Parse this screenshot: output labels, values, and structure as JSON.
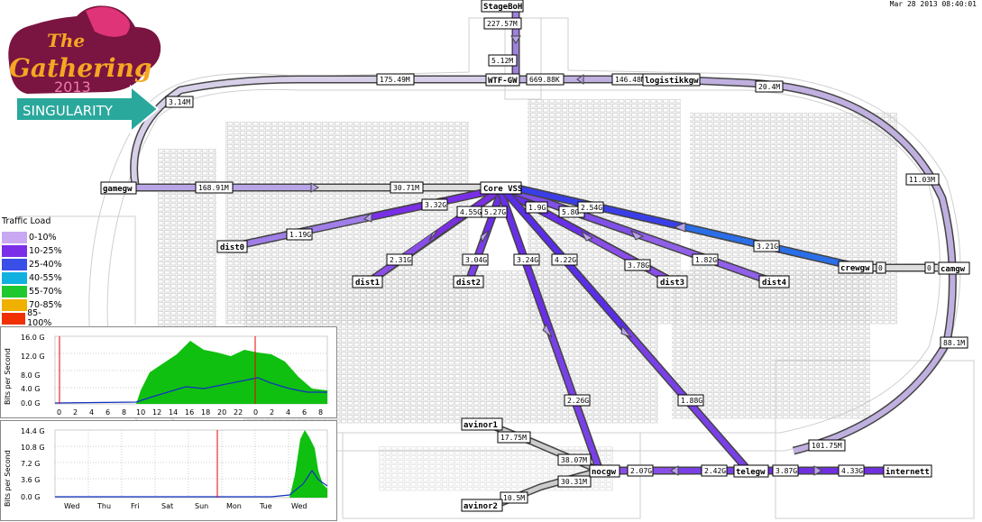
{
  "timestamp": "Mar 28 2013 08:40:01",
  "logo": {
    "line1": "The",
    "line2": "Gathering",
    "year": "2013",
    "tagline": "SINGULARITY"
  },
  "legend": {
    "title": "Traffic Load",
    "items": [
      {
        "label": "0-10%",
        "color": "#c8a8f0"
      },
      {
        "label": "10-25%",
        "color": "#7a2ee8"
      },
      {
        "label": "25-40%",
        "color": "#3a4ee8"
      },
      {
        "label": "40-55%",
        "color": "#10b0e0"
      },
      {
        "label": "55-70%",
        "color": "#20c830"
      },
      {
        "label": "70-85%",
        "color": "#f0b000"
      },
      {
        "label": "85-100%",
        "color": "#f03000"
      }
    ]
  },
  "nodes": {
    "stageboh": "StageBoH",
    "wtfgw": "WTF-GW",
    "logistikkgw": "logistikkgw",
    "gamegw": "gamegw",
    "corevss": "Core VSS",
    "dist0": "dist0",
    "dist1": "dist1",
    "dist2": "dist2",
    "dist3": "dist3",
    "dist4": "dist4",
    "crewgw": "crewgw",
    "camgw": "camgw",
    "avinor1": "avinor1",
    "avinor2": "avinor2",
    "nocgw": "nocgw",
    "telegw": "telegw",
    "internett": "internett"
  },
  "links": {
    "stage_in": "227.57M",
    "stage_out": "5.12M",
    "wtf_left": "175.49M",
    "wtf_right": "669.88K",
    "logi_left": "146.48M",
    "logi_right": "20.4M",
    "loop_left": "3.14M",
    "loop_right": "11.03M",
    "game_core": "168.91M",
    "core_game": "30.71M",
    "core_dist0": "3.32G",
    "dist0_core": "1.19G",
    "core_dist1": "4.55G",
    "dist1_core": "2.31G",
    "core_dist2": "5.27G",
    "dist2_core": "3.04G",
    "core_dist3": "5.8G",
    "dist3_core": "3.78G",
    "core_dist4": "1.9G",
    "dist4_core": "1.82G",
    "core_crew": "2.54G",
    "crew_core": "3.21G",
    "crew_camgw_a": "0",
    "crew_camgw_b": "0",
    "core_noc": "3.24G",
    "noc_core": "2.26G",
    "core_tele": "4.22G",
    "tele_core": "1.88G",
    "camgw_down": "88.1M",
    "tele_up": "101.75M",
    "avinor1_a": "17.75M",
    "avinor1_b": "38.07M",
    "avinor2_a": "10.5M",
    "avinor2_b": "30.31M",
    "noc_tele": "2.07G",
    "tele_noc": "2.42G",
    "tele_inet": "3.87G",
    "inet_tele": "4.33G"
  },
  "graph_day": {
    "ylabel": "Bits per Second",
    "yticks": [
      "16.0 G",
      "12.0 G",
      "8.0 G",
      "4.0 G",
      "0.0 G"
    ],
    "xticks": [
      "0",
      "2",
      "4",
      "6",
      "8",
      "10",
      "12",
      "14",
      "16",
      "18",
      "20",
      "22",
      "0",
      "2",
      "4",
      "6",
      "8"
    ],
    "in_color": "#10c010",
    "out_color": "#1030c0"
  },
  "graph_week": {
    "ylabel": "Bits per Second",
    "yticks": [
      "14.4 G",
      "10.8 G",
      "7.2 G",
      "3.6 G",
      "0.0 G"
    ],
    "xticks": [
      "Wed",
      "Thu",
      "Fri",
      "Sat",
      "Sun",
      "Mon",
      "Tue",
      "Wed"
    ],
    "in_color": "#10c010",
    "out_color": "#1030c0"
  }
}
